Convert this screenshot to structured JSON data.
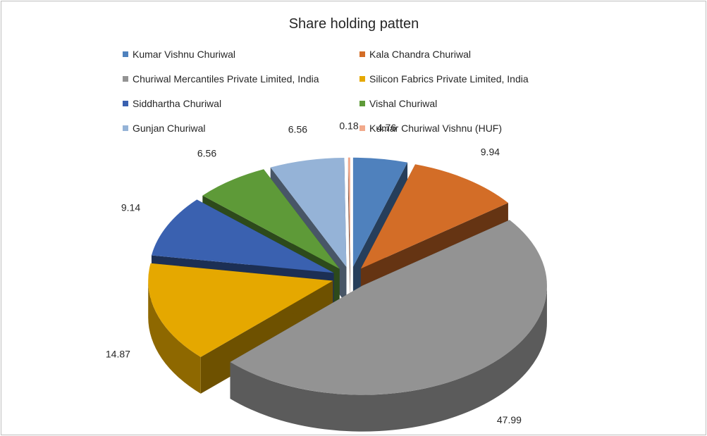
{
  "chart_data": {
    "type": "pie",
    "style": "3d-exploded",
    "title": "Share holding patten",
    "legend_position": "top",
    "categories": [
      "Kumar Vishnu Churiwal",
      "Kala Chandra Churiwal",
      "Churiwal Mercantiles Private Limited, India",
      "Silicon Fabrics Private Limited, India",
      "Siddhartha Churiwal",
      "Vishal Churiwal",
      "Gunjan Churiwal",
      "Kumar Churiwal Vishnu (HUF)"
    ],
    "values": [
      4.76,
      9.94,
      47.99,
      14.87,
      9.14,
      6.56,
      6.56,
      0.18
    ],
    "data_labels": [
      "4.76",
      "9.94",
      "47.99",
      "14.87",
      "9.14",
      "6.56",
      "6.56",
      "0.18"
    ],
    "colors": [
      "#4F81BD",
      "#D36D27",
      "#939393",
      "#E5A800",
      "#3A61B0",
      "#5E9A38",
      "#95B3D7",
      "#F2A98B"
    ]
  }
}
